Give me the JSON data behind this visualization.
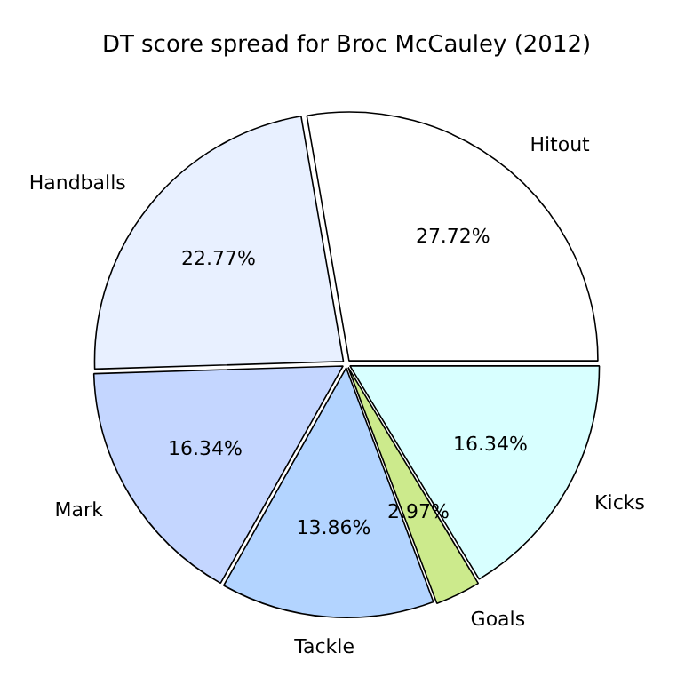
{
  "chart_data": {
    "type": "pie",
    "title": "DT score spread for Broc McCauley (2012)",
    "categories": [
      "Hitout",
      "Handballs",
      "Mark",
      "Tackle",
      "Goals",
      "Kicks"
    ],
    "values": [
      27.72,
      22.77,
      16.34,
      13.86,
      2.97,
      16.34
    ],
    "value_labels": [
      "27.72%",
      "22.77%",
      "16.34%",
      "13.86%",
      "2.97%",
      "16.34%"
    ],
    "colors": [
      "#ffffff",
      "#e8f0ff",
      "#c4d6ff",
      "#b3d4ff",
      "#ccea8c",
      "#d8ffff"
    ],
    "legend": false
  }
}
